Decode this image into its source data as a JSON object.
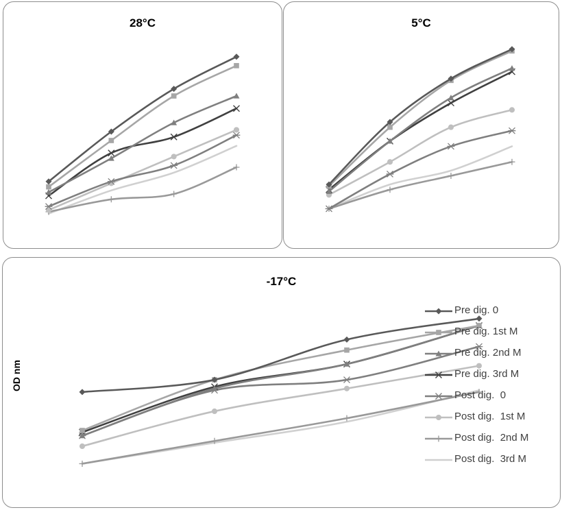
{
  "chart_data": [
    {
      "type": "line",
      "title": "28°C",
      "x": [
        0,
        1,
        2,
        3
      ],
      "ylim": [
        0,
        1
      ],
      "series": [
        {
          "values": [
            0.32,
            0.6,
            0.84,
            1.02
          ],
          "color": "#595959",
          "marker": "diamond"
        },
        {
          "values": [
            0.29,
            0.55,
            0.8,
            0.97
          ],
          "color": "#a6a6a6",
          "marker": "square"
        },
        {
          "values": [
            0.26,
            0.45,
            0.65,
            0.8
          ],
          "color": "#7f7f7f",
          "marker": "triangle"
        },
        {
          "values": [
            0.24,
            0.48,
            0.57,
            0.73
          ],
          "color": "#404040",
          "marker": "x"
        },
        {
          "values": [
            0.18,
            0.32,
            0.41,
            0.58
          ],
          "color": "#7f7f7f",
          "marker": "star"
        },
        {
          "values": [
            0.16,
            0.31,
            0.46,
            0.61
          ],
          "color": "#bfbfbf",
          "marker": "circle"
        },
        {
          "values": [
            0.15,
            0.22,
            0.25,
            0.4
          ],
          "color": "#999999",
          "marker": "plus"
        },
        {
          "values": [
            0.14,
            0.27,
            0.37,
            0.52
          ],
          "color": "#d0d0d0",
          "marker": "none"
        }
      ]
    },
    {
      "type": "line",
      "title": "5°C",
      "x": [
        0,
        1,
        2,
        3
      ],
      "ylim": [
        0,
        1
      ],
      "series": [
        {
          "values": [
            0.3,
            0.66,
            0.91,
            1.08
          ],
          "color": "#595959",
          "marker": "diamond"
        },
        {
          "values": [
            0.29,
            0.63,
            0.9,
            1.07
          ],
          "color": "#a6a6a6",
          "marker": "square"
        },
        {
          "values": [
            0.26,
            0.55,
            0.8,
            0.97
          ],
          "color": "#7f7f7f",
          "marker": "triangle"
        },
        {
          "values": [
            0.27,
            0.55,
            0.77,
            0.95
          ],
          "color": "#404040",
          "marker": "x"
        },
        {
          "values": [
            0.16,
            0.36,
            0.52,
            0.61
          ],
          "color": "#7f7f7f",
          "marker": "star"
        },
        {
          "values": [
            0.24,
            0.43,
            0.63,
            0.73
          ],
          "color": "#bfbfbf",
          "marker": "circle"
        },
        {
          "values": [
            0.16,
            0.27,
            0.35,
            0.43
          ],
          "color": "#999999",
          "marker": "plus"
        },
        {
          "values": [
            0.16,
            0.3,
            0.38,
            0.52
          ],
          "color": "#d0d0d0",
          "marker": "none"
        }
      ]
    },
    {
      "type": "line",
      "title": "-17°C",
      "ylabel": "OD nm",
      "x": [
        0,
        1,
        2,
        3
      ],
      "ylim": [
        0,
        1
      ],
      "series": [
        {
          "name": "Pre dig. 0",
          "values": [
            0.42,
            0.49,
            0.72,
            0.84
          ],
          "color": "#595959",
          "marker": "diamond"
        },
        {
          "name": "Pre dig. 1st M",
          "values": [
            0.2,
            0.49,
            0.66,
            0.8
          ],
          "color": "#a6a6a6",
          "marker": "square"
        },
        {
          "name": "Pre dig. 2nd M",
          "values": [
            0.17,
            0.44,
            0.58,
            0.8
          ],
          "color": "#7f7f7f",
          "marker": "triangle"
        },
        {
          "name": "Pre dig. 3rd M",
          "values": [
            0.19,
            0.45,
            0.58,
            0.8
          ],
          "color": "#404040",
          "marker": "x"
        },
        {
          "name": "Post dig.  0",
          "values": [
            0.17,
            0.43,
            0.49,
            0.68
          ],
          "color": "#7f7f7f",
          "marker": "star"
        },
        {
          "name": "Post dig.  1st M",
          "values": [
            0.11,
            0.31,
            0.44,
            0.57
          ],
          "color": "#bfbfbf",
          "marker": "circle"
        },
        {
          "name": "Post dig.  2nd M",
          "values": [
            0.01,
            0.14,
            0.27,
            0.42
          ],
          "color": "#999999",
          "marker": "plus"
        },
        {
          "name": "Post dig.  3rd M",
          "values": [
            0.01,
            0.13,
            0.25,
            0.43
          ],
          "color": "#d0d0d0",
          "marker": "none"
        }
      ]
    }
  ]
}
